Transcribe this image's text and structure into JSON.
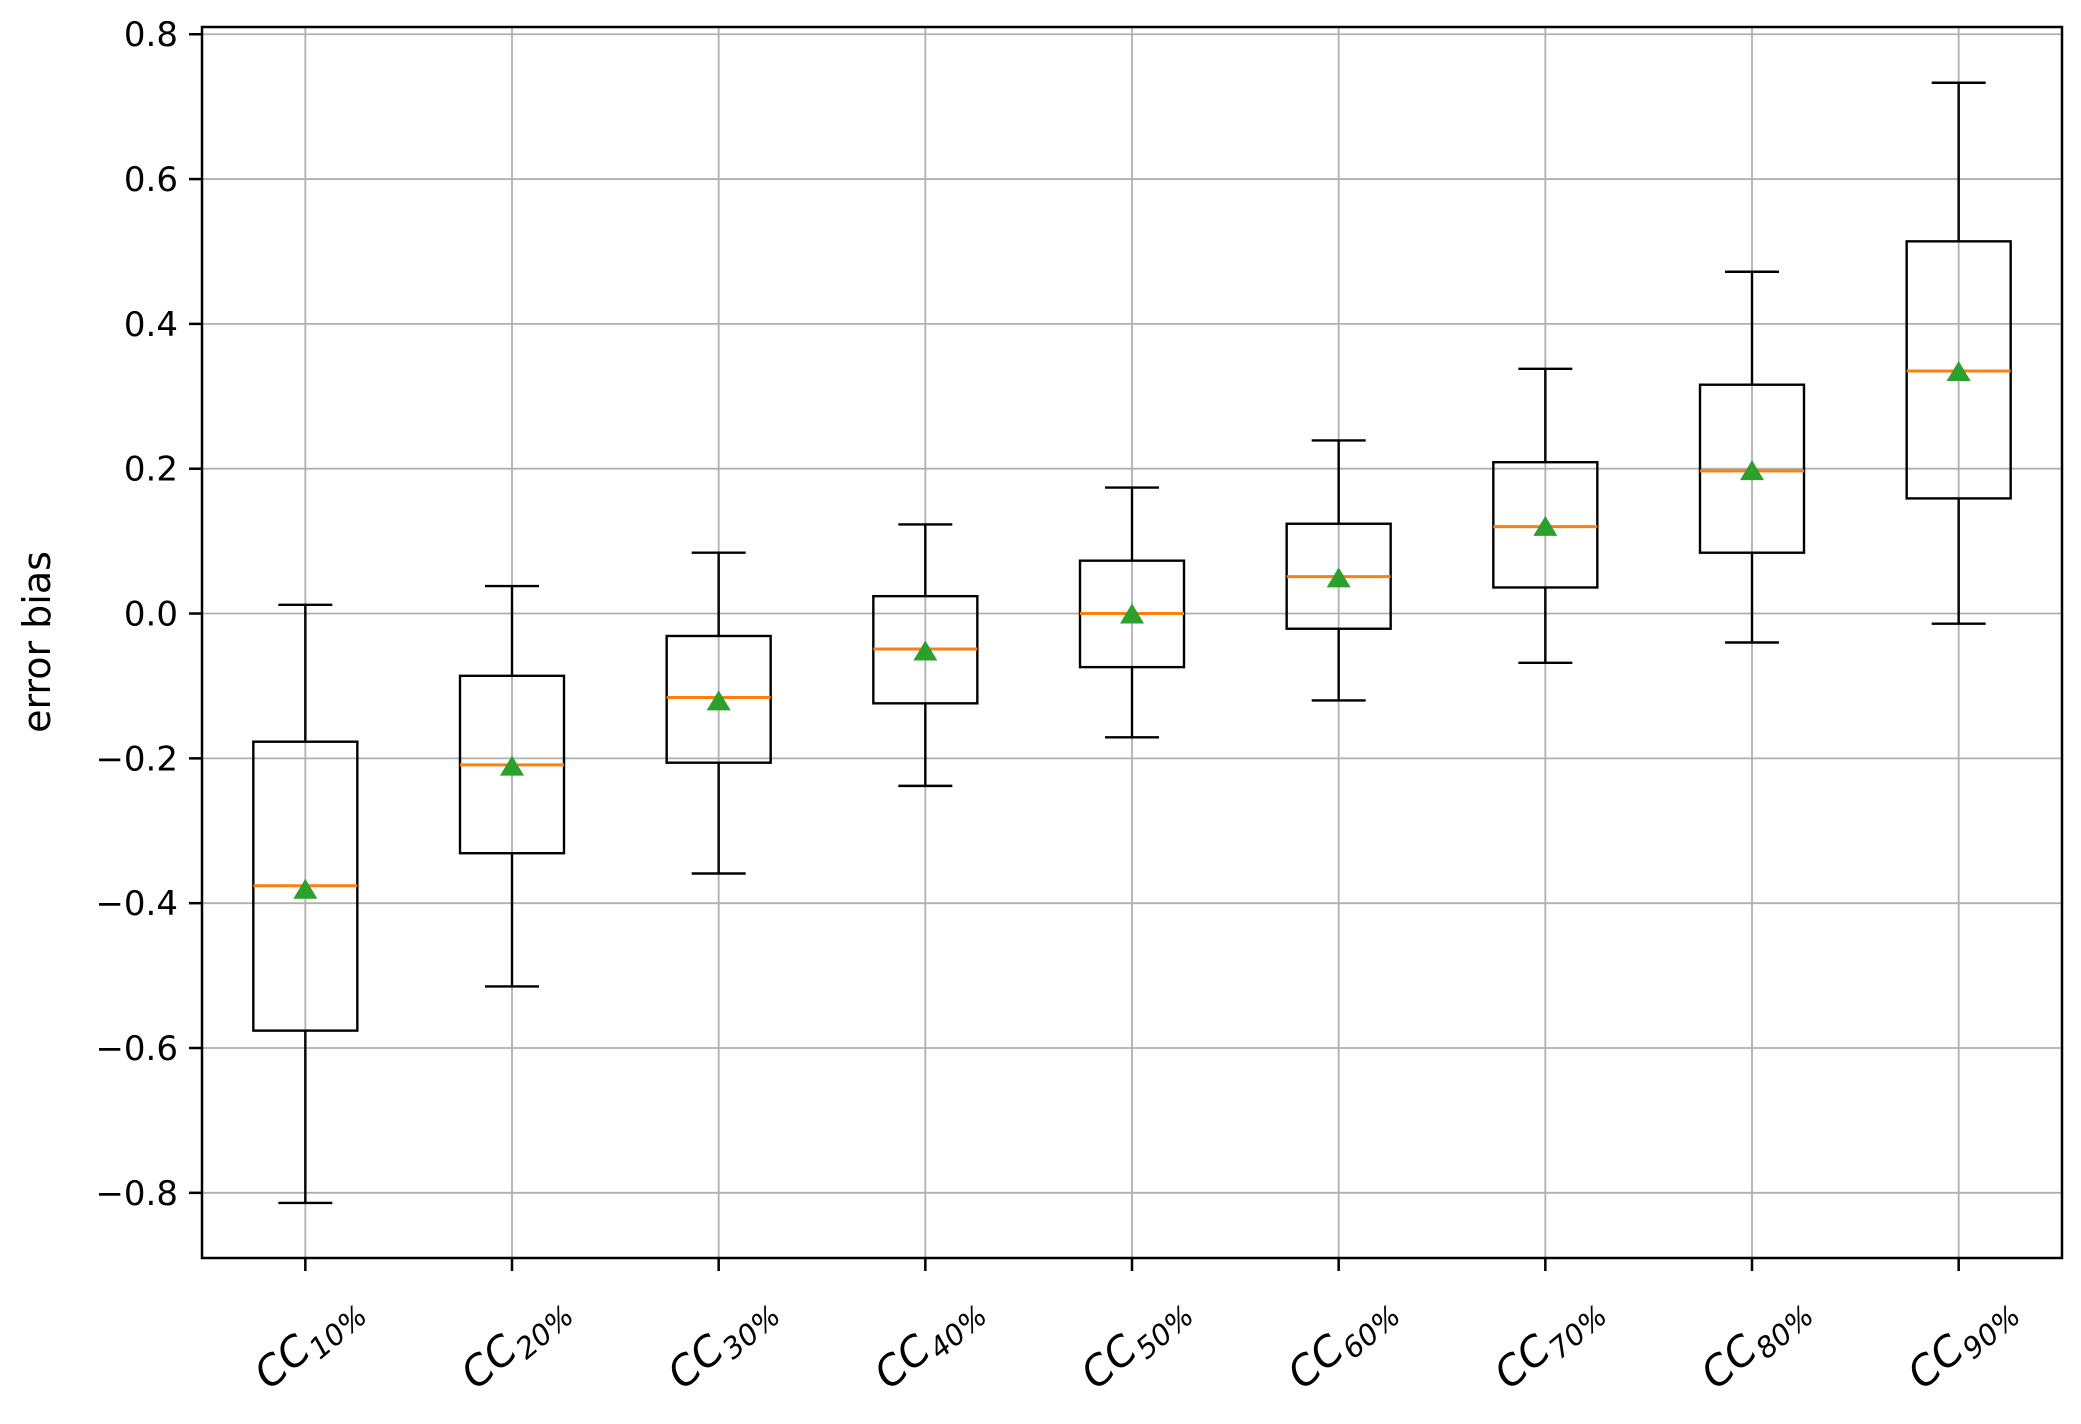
{
  "chart_data": {
    "type": "boxplot",
    "title": "",
    "xlabel": "",
    "ylabel": "error bias",
    "grid": true,
    "legend": "none",
    "ylim": [
      -0.89,
      0.81
    ],
    "yticks": [
      0.8,
      0.6,
      0.4,
      0.2,
      0.0,
      -0.2,
      -0.4,
      -0.6,
      -0.8
    ],
    "ytick_labels": [
      "0.8",
      "0.6",
      "0.4",
      "0.2",
      "0.0",
      "−0.2",
      "−0.4",
      "−0.6",
      "−0.8"
    ],
    "categories": [
      {
        "label": "CC10%",
        "base": "CC",
        "sub": "10%"
      },
      {
        "label": "CC20%",
        "base": "CC",
        "sub": "20%"
      },
      {
        "label": "CC30%",
        "base": "CC",
        "sub": "30%"
      },
      {
        "label": "CC40%",
        "base": "CC",
        "sub": "40%"
      },
      {
        "label": "CC50%",
        "base": "CC",
        "sub": "50%"
      },
      {
        "label": "CC60%",
        "base": "CC",
        "sub": "60%"
      },
      {
        "label": "CC70%",
        "base": "CC",
        "sub": "70%"
      },
      {
        "label": "CC80%",
        "base": "CC",
        "sub": "80%"
      },
      {
        "label": "CC90%",
        "base": "CC",
        "sub": "90%"
      }
    ],
    "series": [
      {
        "category": "CC10%",
        "whisker_low": -0.814,
        "q1": -0.576,
        "median": -0.376,
        "mean": -0.38,
        "q3": -0.177,
        "whisker_high": 0.012
      },
      {
        "category": "CC20%",
        "whisker_low": -0.515,
        "q1": -0.331,
        "median": -0.209,
        "mean": -0.21,
        "q3": -0.086,
        "whisker_high": 0.038
      },
      {
        "category": "CC30%",
        "whisker_low": -0.359,
        "q1": -0.206,
        "median": -0.116,
        "mean": -0.12,
        "q3": -0.031,
        "whisker_high": 0.084
      },
      {
        "category": "CC40%",
        "whisker_low": -0.238,
        "q1": -0.124,
        "median": -0.049,
        "mean": -0.051,
        "q3": 0.024,
        "whisker_high": 0.123
      },
      {
        "category": "CC50%",
        "whisker_low": -0.171,
        "q1": -0.074,
        "median": 0.0,
        "mean": 0.0,
        "q3": 0.073,
        "whisker_high": 0.174
      },
      {
        "category": "CC60%",
        "whisker_low": -0.12,
        "q1": -0.021,
        "median": 0.051,
        "mean": 0.05,
        "q3": 0.124,
        "whisker_high": 0.239
      },
      {
        "category": "CC70%",
        "whisker_low": -0.068,
        "q1": 0.036,
        "median": 0.12,
        "mean": 0.121,
        "q3": 0.209,
        "whisker_high": 0.338
      },
      {
        "category": "CC80%",
        "whisker_low": -0.04,
        "q1": 0.084,
        "median": 0.197,
        "mean": 0.198,
        "q3": 0.316,
        "whisker_high": 0.472
      },
      {
        "category": "CC90%",
        "whisker_low": -0.014,
        "q1": 0.159,
        "median": 0.335,
        "mean": 0.335,
        "q3": 0.514,
        "whisker_high": 0.733
      }
    ],
    "colors": {
      "box_line": "#000000",
      "median": "#ff7f0e",
      "mean_marker": "#2ca02c",
      "grid": "#b0b0b0",
      "background": "#ffffff"
    }
  }
}
